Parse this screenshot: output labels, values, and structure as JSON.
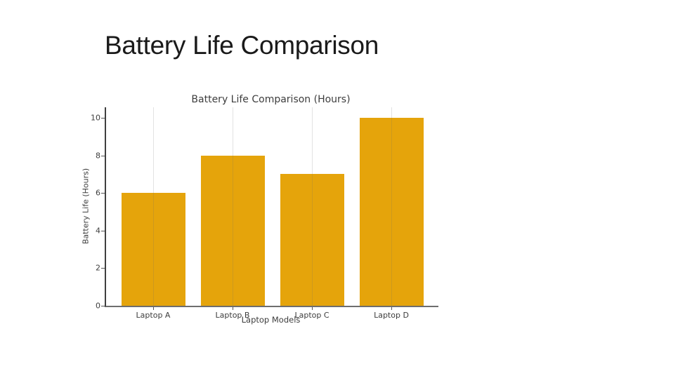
{
  "slide": {
    "title": "Battery Life Comparison"
  },
  "chart_data": {
    "type": "bar",
    "title": "Battery Life Comparison (Hours)",
    "xlabel": "Laptop Models",
    "ylabel": "Battery Life (Hours)",
    "categories": [
      "Laptop A",
      "Laptop B",
      "Laptop C",
      "Laptop D"
    ],
    "values": [
      6,
      8,
      7,
      10
    ],
    "ylim": [
      0,
      10.56
    ],
    "yticks": [
      0,
      2,
      4,
      6,
      8,
      10
    ],
    "grid": "faint vertical gridline at each category center",
    "legend": "none",
    "bar_color": "#E5A40B"
  },
  "colors": {
    "background": "#ffffff",
    "slide_title_text": "#1a1a1a",
    "chart_text": "#3d3d3d",
    "left_spine": "#3f3f3f",
    "axis_line": "#6e6e6e",
    "gridline": "rgba(110,110,110,0.20)",
    "bar": "#E5A40B",
    "tick": "#555555"
  }
}
